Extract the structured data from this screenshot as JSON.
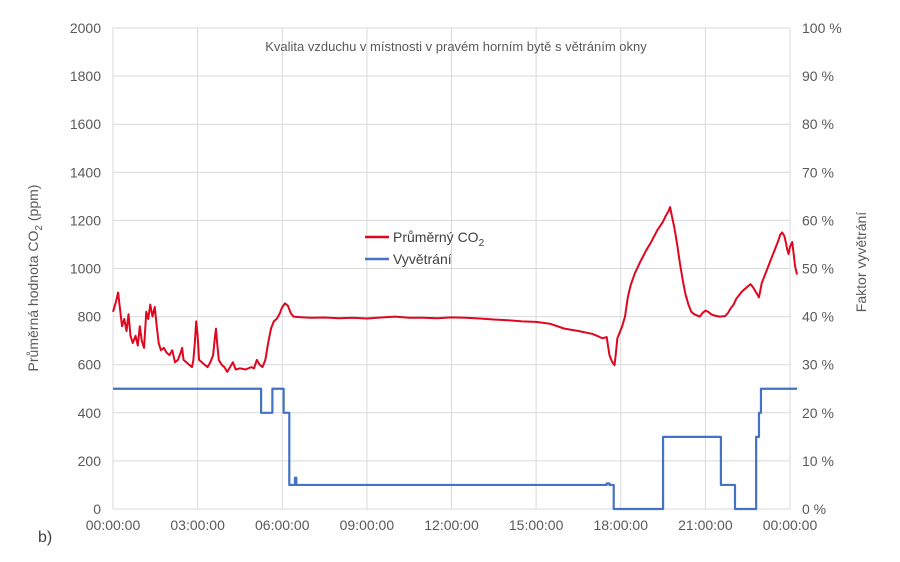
{
  "chart_data": {
    "type": "line",
    "panel_label": "b)",
    "title": "Kvalita vzduchu v místnosti v pravém horním bytě s větráním okny",
    "ylabel_left_parts": [
      "Průměrná hodnota CO",
      "2",
      " (ppm)"
    ],
    "ylabel_right": "Faktor vyvětrání",
    "ylim_left": [
      0,
      2000
    ],
    "ylim_right": [
      0,
      100
    ],
    "xlim": [
      0,
      24
    ],
    "grid": "vertical and horizontal",
    "legend_position": "center",
    "x_ticks": [
      {
        "x": 0,
        "label": "00:00:00"
      },
      {
        "x": 3,
        "label": "03:00:00"
      },
      {
        "x": 6,
        "label": "06:00:00"
      },
      {
        "x": 9,
        "label": "09:00:00"
      },
      {
        "x": 12,
        "label": "12:00:00"
      },
      {
        "x": 15,
        "label": "15:00:00"
      },
      {
        "x": 18,
        "label": "18:00:00"
      },
      {
        "x": 21,
        "label": "21:00:00"
      },
      {
        "x": 24,
        "label": "00:00:00"
      }
    ],
    "y_ticks_left": [
      "0",
      "200",
      "400",
      "600",
      "800",
      "1000",
      "1200",
      "1400",
      "1600",
      "1800",
      "2000"
    ],
    "y_ticks_right": [
      "0 %",
      "5 %",
      "10 %",
      "15 %",
      "20 %",
      "25 %",
      "30 %",
      "35 %",
      "40 %",
      "45 %",
      "50 %",
      "55 %",
      "60 %",
      "65 %",
      "70 %",
      "75 %",
      "80 %",
      "85 %",
      "90 %",
      "95 %",
      "100 %"
    ],
    "series": [
      {
        "name_parts": [
          "Průměrný CO",
          "2"
        ],
        "axis": "left",
        "color": "#e0061f",
        "points": [
          [
            0.0,
            820
          ],
          [
            0.1,
            860
          ],
          [
            0.18,
            900
          ],
          [
            0.25,
            830
          ],
          [
            0.32,
            760
          ],
          [
            0.4,
            790
          ],
          [
            0.48,
            740
          ],
          [
            0.55,
            810
          ],
          [
            0.62,
            720
          ],
          [
            0.7,
            690
          ],
          [
            0.8,
            720
          ],
          [
            0.88,
            680
          ],
          [
            0.95,
            760
          ],
          [
            1.02,
            700
          ],
          [
            1.1,
            670
          ],
          [
            1.18,
            820
          ],
          [
            1.25,
            790
          ],
          [
            1.32,
            850
          ],
          [
            1.4,
            800
          ],
          [
            1.48,
            840
          ],
          [
            1.55,
            760
          ],
          [
            1.62,
            690
          ],
          [
            1.7,
            660
          ],
          [
            1.8,
            670
          ],
          [
            1.9,
            650
          ],
          [
            2.0,
            640
          ],
          [
            2.1,
            660
          ],
          [
            2.2,
            610
          ],
          [
            2.3,
            620
          ],
          [
            2.4,
            650
          ],
          [
            2.45,
            670
          ],
          [
            2.5,
            620
          ],
          [
            2.6,
            610
          ],
          [
            2.7,
            600
          ],
          [
            2.8,
            590
          ],
          [
            2.85,
            620
          ],
          [
            2.9,
            690
          ],
          [
            2.95,
            780
          ],
          [
            3.0,
            720
          ],
          [
            3.05,
            620
          ],
          [
            3.15,
            610
          ],
          [
            3.25,
            600
          ],
          [
            3.35,
            590
          ],
          [
            3.45,
            610
          ],
          [
            3.55,
            640
          ],
          [
            3.6,
            700
          ],
          [
            3.65,
            750
          ],
          [
            3.7,
            680
          ],
          [
            3.75,
            620
          ],
          [
            3.85,
            600
          ],
          [
            3.95,
            590
          ],
          [
            4.05,
            570
          ],
          [
            4.15,
            590
          ],
          [
            4.25,
            610
          ],
          [
            4.35,
            580
          ],
          [
            4.5,
            585
          ],
          [
            4.7,
            580
          ],
          [
            4.9,
            590
          ],
          [
            5.0,
            585
          ],
          [
            5.1,
            620
          ],
          [
            5.2,
            600
          ],
          [
            5.3,
            590
          ],
          [
            5.4,
            620
          ],
          [
            5.5,
            690
          ],
          [
            5.6,
            750
          ],
          [
            5.7,
            780
          ],
          [
            5.8,
            790
          ],
          [
            5.9,
            810
          ],
          [
            6.0,
            840
          ],
          [
            6.1,
            855
          ],
          [
            6.2,
            845
          ],
          [
            6.3,
            815
          ],
          [
            6.4,
            800
          ],
          [
            6.6,
            798
          ],
          [
            7.0,
            795
          ],
          [
            7.5,
            796
          ],
          [
            8.0,
            793
          ],
          [
            8.5,
            795
          ],
          [
            9.0,
            792
          ],
          [
            9.5,
            796
          ],
          [
            10.0,
            800
          ],
          [
            10.5,
            795
          ],
          [
            11.0,
            795
          ],
          [
            11.5,
            793
          ],
          [
            12.0,
            797
          ],
          [
            12.5,
            795
          ],
          [
            13.0,
            792
          ],
          [
            13.5,
            788
          ],
          [
            14.0,
            785
          ],
          [
            14.5,
            780
          ],
          [
            15.0,
            778
          ],
          [
            15.5,
            770
          ],
          [
            16.0,
            750
          ],
          [
            16.5,
            740
          ],
          [
            17.0,
            728
          ],
          [
            17.2,
            718
          ],
          [
            17.35,
            710
          ],
          [
            17.5,
            715
          ],
          [
            17.6,
            640
          ],
          [
            17.7,
            610
          ],
          [
            17.78,
            598
          ],
          [
            17.82,
            640
          ],
          [
            17.88,
            710
          ],
          [
            17.95,
            730
          ],
          [
            18.05,
            760
          ],
          [
            18.15,
            800
          ],
          [
            18.25,
            880
          ],
          [
            18.35,
            930
          ],
          [
            18.5,
            980
          ],
          [
            18.7,
            1030
          ],
          [
            18.9,
            1075
          ],
          [
            19.1,
            1115
          ],
          [
            19.3,
            1160
          ],
          [
            19.5,
            1195
          ],
          [
            19.6,
            1220
          ],
          [
            19.7,
            1240
          ],
          [
            19.75,
            1255
          ],
          [
            19.8,
            1225
          ],
          [
            19.9,
            1170
          ],
          [
            20.0,
            1100
          ],
          [
            20.1,
            1020
          ],
          [
            20.2,
            950
          ],
          [
            20.3,
            890
          ],
          [
            20.4,
            850
          ],
          [
            20.5,
            820
          ],
          [
            20.6,
            810
          ],
          [
            20.7,
            805
          ],
          [
            20.8,
            800
          ],
          [
            20.9,
            815
          ],
          [
            21.0,
            825
          ],
          [
            21.1,
            820
          ],
          [
            21.2,
            810
          ],
          [
            21.3,
            805
          ],
          [
            21.5,
            800
          ],
          [
            21.7,
            802
          ],
          [
            21.8,
            815
          ],
          [
            21.9,
            835
          ],
          [
            22.0,
            850
          ],
          [
            22.1,
            875
          ],
          [
            22.2,
            890
          ],
          [
            22.3,
            905
          ],
          [
            22.4,
            915
          ],
          [
            22.5,
            925
          ],
          [
            22.6,
            935
          ],
          [
            22.7,
            920
          ],
          [
            22.8,
            900
          ],
          [
            22.9,
            880
          ],
          [
            23.0,
            940
          ],
          [
            23.1,
            970
          ],
          [
            23.2,
            1000
          ],
          [
            23.3,
            1030
          ],
          [
            23.4,
            1060
          ],
          [
            23.5,
            1090
          ],
          [
            23.6,
            1120
          ],
          [
            23.65,
            1140
          ],
          [
            23.72,
            1150
          ],
          [
            23.8,
            1135
          ],
          [
            23.85,
            1110
          ],
          [
            23.9,
            1080
          ],
          [
            23.95,
            1060
          ],
          [
            24.0,
            1090
          ],
          [
            24.08,
            1110
          ],
          [
            24.12,
            1070
          ],
          [
            24.18,
            1010
          ],
          [
            24.25,
            975
          ]
        ]
      },
      {
        "name": "Vyvětrání",
        "axis": "right",
        "color": "#4472c4",
        "points": [
          [
            0.0,
            25
          ],
          [
            5.25,
            25
          ],
          [
            5.25,
            20
          ],
          [
            5.65,
            20
          ],
          [
            5.65,
            25
          ],
          [
            6.05,
            25
          ],
          [
            6.05,
            20
          ],
          [
            6.25,
            20
          ],
          [
            6.25,
            5
          ],
          [
            6.45,
            5
          ],
          [
            6.45,
            6.5
          ],
          [
            6.5,
            6.5
          ],
          [
            6.5,
            5
          ],
          [
            17.5,
            5
          ],
          [
            17.5,
            5.3
          ],
          [
            17.6,
            5.3
          ],
          [
            17.6,
            5
          ],
          [
            17.75,
            5
          ],
          [
            17.75,
            0
          ],
          [
            19.5,
            0
          ],
          [
            19.5,
            15
          ],
          [
            21.55,
            15
          ],
          [
            21.55,
            5
          ],
          [
            22.05,
            5
          ],
          [
            22.05,
            0
          ],
          [
            22.8,
            0
          ],
          [
            22.8,
            15
          ],
          [
            22.9,
            15
          ],
          [
            22.9,
            20
          ],
          [
            22.97,
            20
          ],
          [
            22.97,
            25
          ],
          [
            24.25,
            25
          ]
        ]
      }
    ]
  }
}
